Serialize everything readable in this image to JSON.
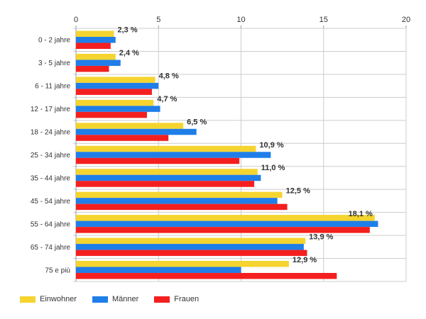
{
  "chart_data": {
    "type": "bar",
    "orientation": "horizontal",
    "categories": [
      "0 - 2 jahre",
      "3 - 5 jahre",
      "6 - 11 jahre",
      "12 - 17 jahre",
      "18 - 24 jahre",
      "25 - 34 jahre",
      "35 - 44 jahre",
      "45 - 54 jahre",
      "55 - 64 jahre",
      "65 - 74 jahre",
      "75 e più"
    ],
    "series": [
      {
        "name": "Einwohner",
        "color": "#f5d42f",
        "values": [
          2.3,
          2.4,
          4.8,
          4.7,
          6.5,
          10.9,
          11.0,
          12.5,
          18.1,
          13.9,
          12.9
        ]
      },
      {
        "name": "Männer",
        "color": "#1f7ee8",
        "values": [
          2.4,
          2.7,
          5.0,
          5.1,
          7.3,
          11.8,
          11.2,
          12.2,
          18.3,
          13.8,
          10.0
        ]
      },
      {
        "name": "Frauen",
        "color": "#f41f1f",
        "values": [
          2.1,
          2.0,
          4.6,
          4.3,
          5.6,
          9.9,
          10.8,
          12.8,
          17.8,
          14.0,
          15.8
        ]
      }
    ],
    "data_labels": [
      "2,3 %",
      "2,4 %",
      "4,8 %",
      "4,7 %",
      "6,5 %",
      "10,9 %",
      "11,0 %",
      "12,5 %",
      "18,1 %",
      "13,9 %",
      "12,9 %"
    ],
    "x_ticks": [
      "0",
      "5",
      "10",
      "15",
      "20"
    ],
    "xlim": [
      0,
      20
    ],
    "grid": true,
    "legend_position": "bottom-left"
  }
}
